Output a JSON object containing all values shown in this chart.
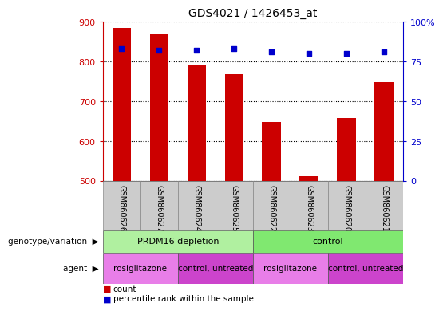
{
  "title": "GDS4021 / 1426453_at",
  "samples": [
    "GSM860626",
    "GSM860627",
    "GSM860624",
    "GSM860625",
    "GSM860622",
    "GSM860623",
    "GSM860620",
    "GSM860621"
  ],
  "counts": [
    884,
    869,
    793,
    769,
    649,
    512,
    658,
    749
  ],
  "percentile_ranks": [
    83,
    82,
    82,
    83,
    81,
    80,
    80,
    81
  ],
  "ymin": 500,
  "ymax": 900,
  "yticks": [
    500,
    600,
    700,
    800,
    900
  ],
  "y2min": 0,
  "y2max": 100,
  "y2ticks": [
    0,
    25,
    50,
    75,
    100
  ],
  "bar_color": "#cc0000",
  "dot_color": "#0000cc",
  "bar_width": 0.5,
  "genotype_groups": [
    {
      "label": "PRDM16 depletion",
      "start": 0,
      "end": 4,
      "color": "#b0f0a0"
    },
    {
      "label": "control",
      "start": 4,
      "end": 8,
      "color": "#80e870"
    }
  ],
  "agent_groups": [
    {
      "label": "rosiglitazone",
      "start": 0,
      "end": 2,
      "color": "#e87ee8"
    },
    {
      "label": "control, untreated",
      "start": 2,
      "end": 4,
      "color": "#cc44cc"
    },
    {
      "label": "rosiglitazone",
      "start": 4,
      "end": 6,
      "color": "#e87ee8"
    },
    {
      "label": "control, untreated",
      "start": 6,
      "end": 8,
      "color": "#cc44cc"
    }
  ],
  "tick_color_left": "#cc0000",
  "tick_color_right": "#0000cc",
  "sample_box_color": "#cccccc",
  "sample_box_edge": "#888888"
}
